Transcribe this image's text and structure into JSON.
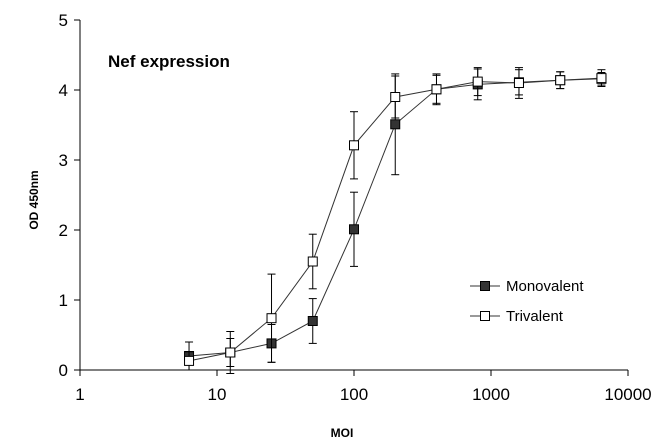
{
  "chart_data": {
    "type": "line",
    "title": "Nef expression",
    "xlabel": "MOI",
    "ylabel": "OD 450nm",
    "xscale": "log",
    "xlim": [
      1,
      10000
    ],
    "ylim": [
      0,
      5
    ],
    "x_ticks": [
      "1",
      "10",
      "100",
      "1000",
      "10000"
    ],
    "y_ticks": [
      "0",
      "1",
      "2",
      "3",
      "4",
      "5"
    ],
    "grid": false,
    "legend_position": "center-right",
    "x": [
      6.25,
      12.5,
      25,
      50,
      100,
      200,
      400,
      800,
      1600,
      3200,
      6400
    ],
    "series": [
      {
        "name": "Monovalent",
        "marker": "filled-square",
        "color": "#333333",
        "values": [
          0.2,
          0.25,
          0.38,
          0.7,
          2.01,
          3.51,
          4.01,
          4.08,
          4.11,
          4.14,
          4.16
        ],
        "error": [
          0.2,
          0.2,
          0.27,
          0.32,
          0.53,
          0.72,
          0.2,
          0.22,
          0.18,
          0.12,
          0.09
        ]
      },
      {
        "name": "Trivalent",
        "marker": "open-square",
        "color": "#333333",
        "values": [
          0.13,
          0.25,
          0.74,
          1.55,
          3.21,
          3.9,
          4.01,
          4.12,
          4.1,
          4.14,
          4.17
        ],
        "error": [
          0.13,
          0.3,
          0.63,
          0.39,
          0.48,
          0.3,
          0.22,
          0.2,
          0.22,
          0.12,
          0.12
        ]
      }
    ]
  }
}
